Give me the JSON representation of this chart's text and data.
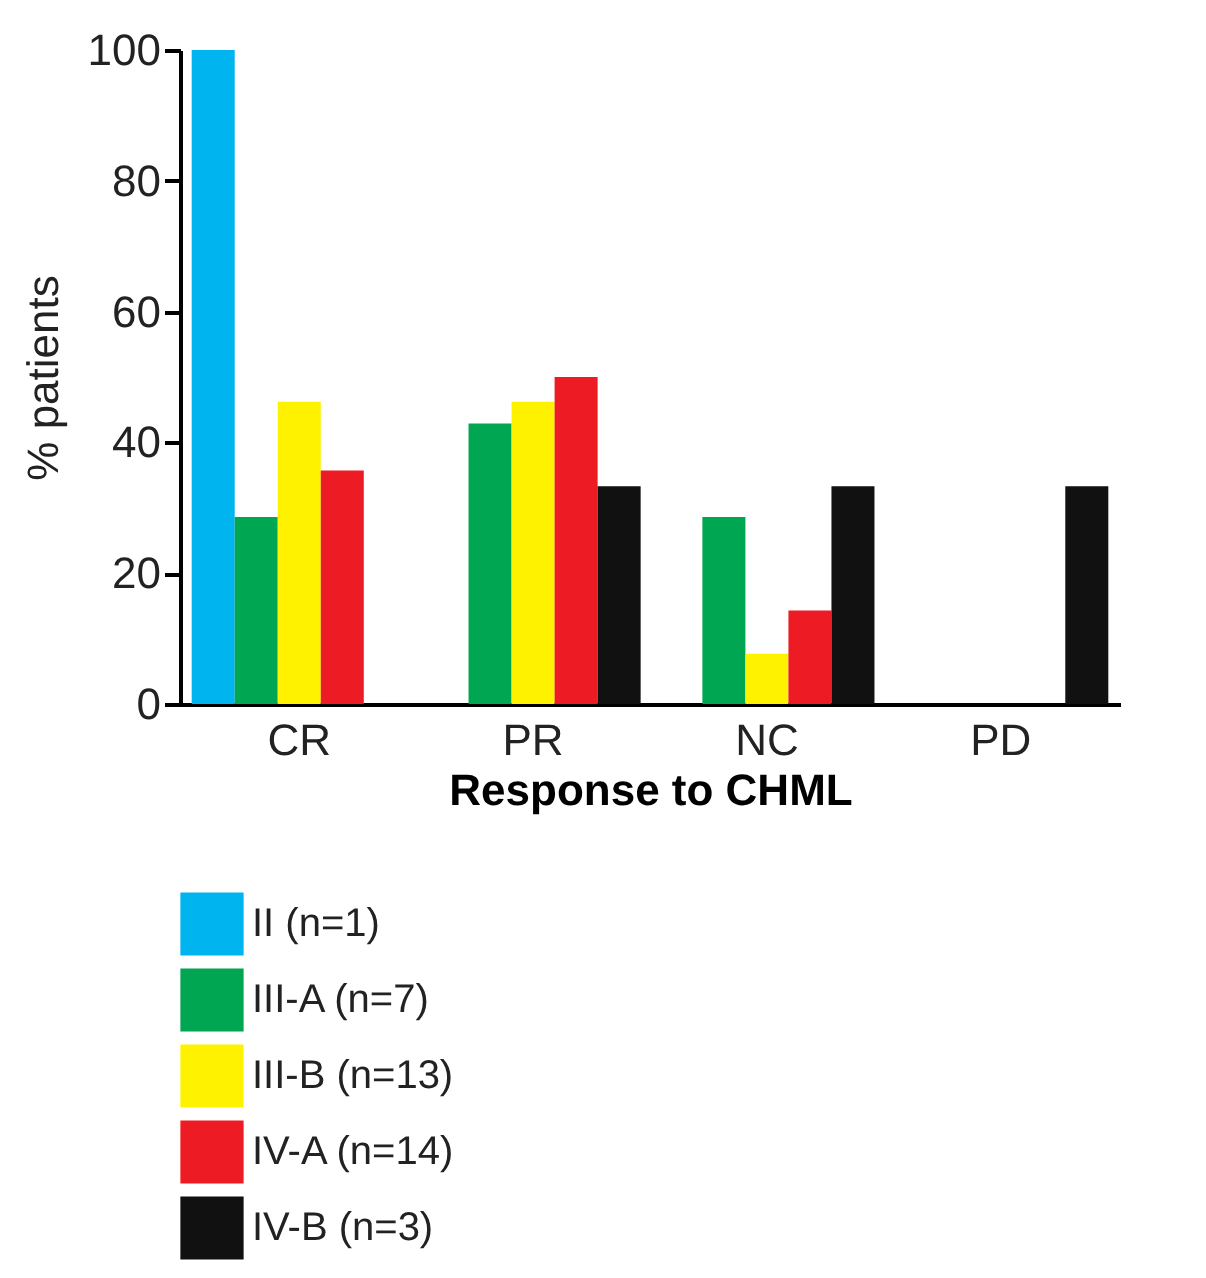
{
  "chart_data": {
    "type": "bar",
    "xlabel": "Response to CHML",
    "ylabel": "% patients",
    "categories": [
      "CR",
      "PR",
      "NC",
      "PD"
    ],
    "series": [
      {
        "name": "II (n=1)",
        "color": "#00b4f0",
        "values": [
          100,
          0,
          0,
          0
        ]
      },
      {
        "name": "III-A (n=7)",
        "color": "#00a651",
        "values": [
          28.6,
          42.9,
          28.6,
          0
        ]
      },
      {
        "name": "III-B (n=13)",
        "color": "#fff200",
        "values": [
          46.2,
          46.2,
          7.7,
          0
        ]
      },
      {
        "name": "IV-A (n=14)",
        "color": "#ed1c24",
        "values": [
          35.7,
          50,
          14.3,
          0
        ]
      },
      {
        "name": "IV-B (n=3)",
        "color": "#111111",
        "values": [
          0,
          33.3,
          33.3,
          33.3
        ]
      }
    ],
    "ylim": [
      0,
      100
    ],
    "yticks": [
      0,
      20,
      40,
      60,
      80,
      100
    ],
    "grid": false,
    "legend": "bottom"
  }
}
